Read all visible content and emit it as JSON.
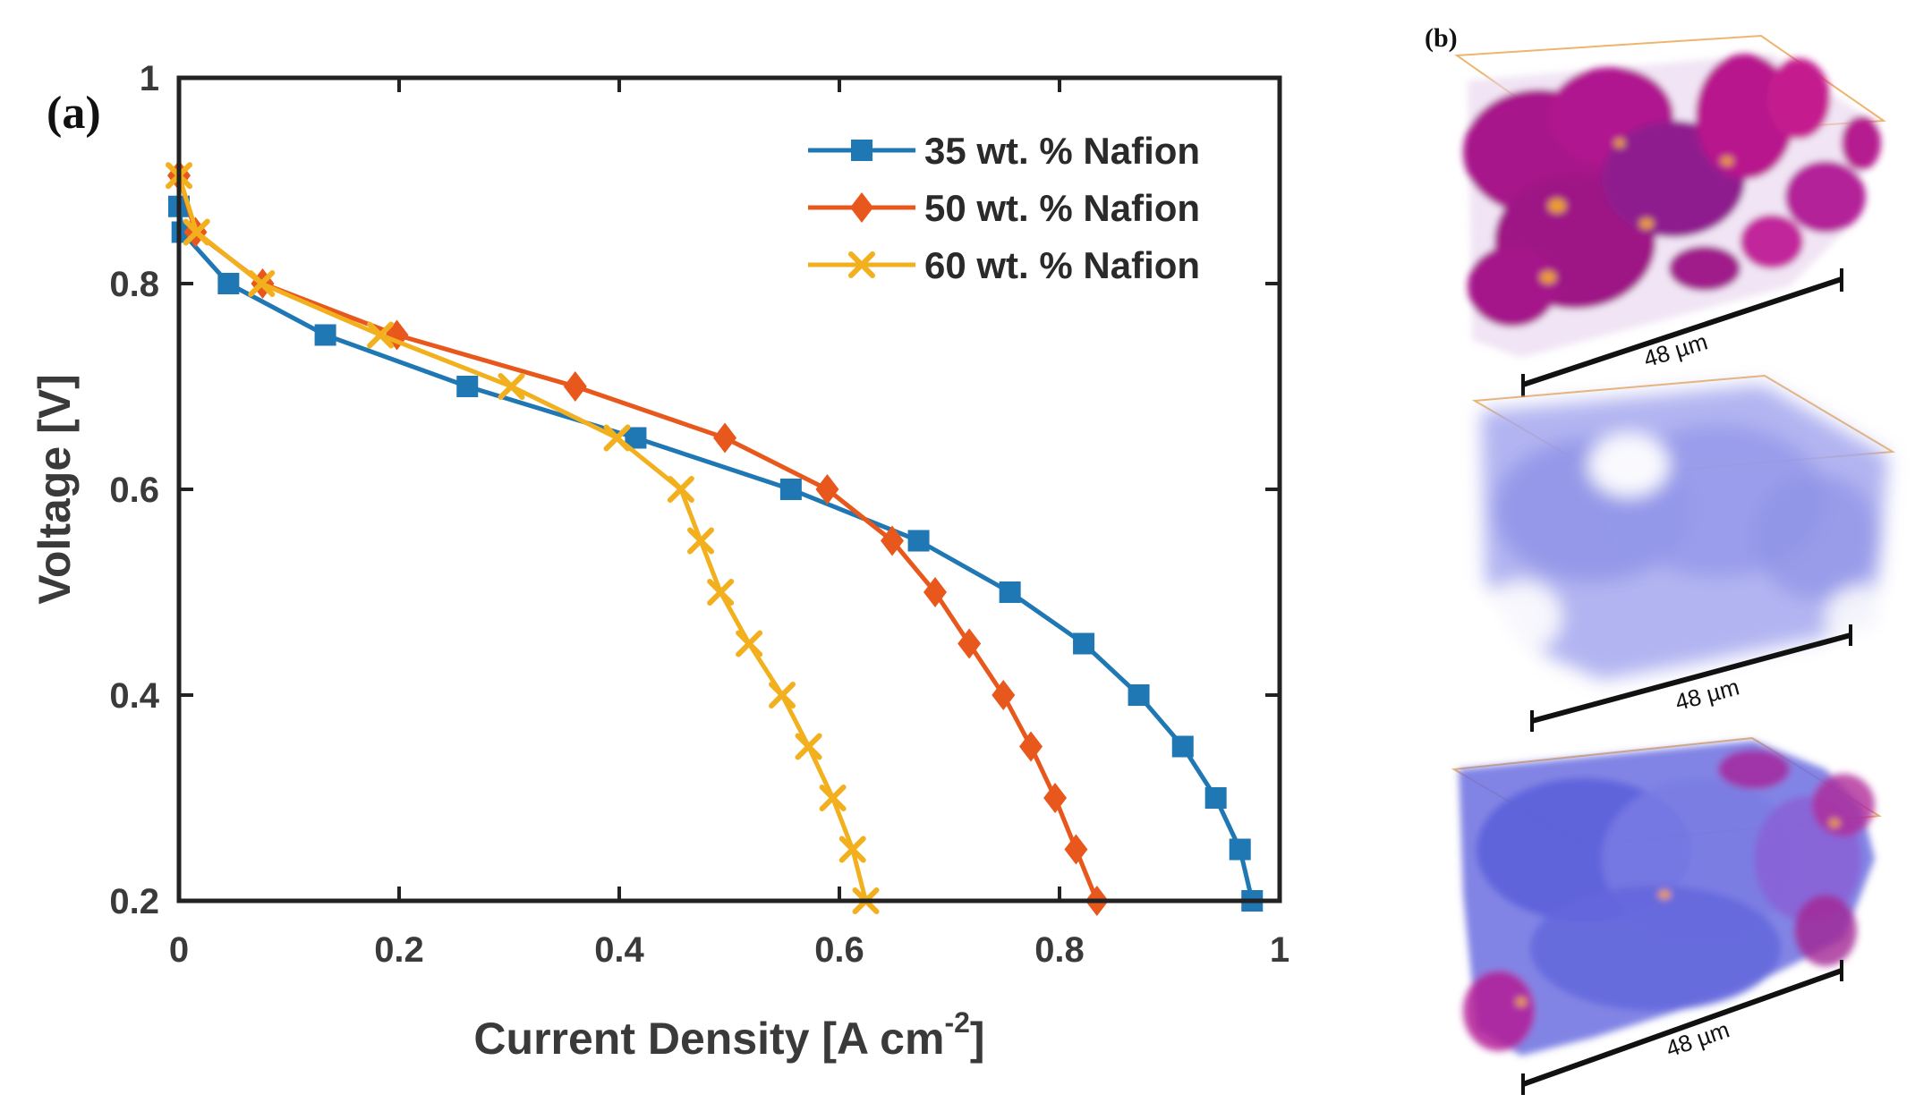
{
  "panel_a": {
    "label": "(a)",
    "chart_data": {
      "type": "line",
      "xlabel": "Current Density [A cm",
      "xlabel_sup": "-2",
      "xlabel_end": "]",
      "ylabel": "Voltage [V]",
      "xlim": [
        0,
        1
      ],
      "ylim": [
        0.2,
        1
      ],
      "xticks": [
        0,
        0.2,
        0.4,
        0.6,
        0.8,
        1
      ],
      "xtick_labels": [
        "0",
        "0.2",
        "0.4",
        "0.6",
        "0.8",
        "1"
      ],
      "yticks": [
        0.2,
        0.4,
        0.6,
        0.8,
        1
      ],
      "ytick_labels": [
        "0.2",
        "0.4",
        "0.6",
        "0.8",
        "1"
      ],
      "legend_position": "top-right",
      "grid": false,
      "series": [
        {
          "name": "35 wt. % Nafion",
          "color": "#1f77b4",
          "marker": "square",
          "points": [
            [
              0,
              0.875
            ],
            [
              0.003,
              0.85
            ],
            [
              0.045,
              0.8
            ],
            [
              0.133,
              0.75
            ],
            [
              0.262,
              0.7
            ],
            [
              0.415,
              0.65
            ],
            [
              0.556,
              0.6
            ],
            [
              0.672,
              0.55
            ],
            [
              0.755,
              0.5
            ],
            [
              0.822,
              0.45
            ],
            [
              0.872,
              0.4
            ],
            [
              0.912,
              0.35
            ],
            [
              0.942,
              0.3
            ],
            [
              0.964,
              0.25
            ],
            [
              0.975,
              0.2
            ]
          ]
        },
        {
          "name": "50 wt. % Nafion",
          "color": "#e8581c",
          "marker": "diamond",
          "points": [
            [
              0,
              0.905
            ],
            [
              0.015,
              0.85
            ],
            [
              0.076,
              0.8
            ],
            [
              0.198,
              0.75
            ],
            [
              0.36,
              0.7
            ],
            [
              0.496,
              0.65
            ],
            [
              0.589,
              0.6
            ],
            [
              0.648,
              0.55
            ],
            [
              0.687,
              0.5
            ],
            [
              0.718,
              0.45
            ],
            [
              0.749,
              0.4
            ],
            [
              0.774,
              0.35
            ],
            [
              0.796,
              0.3
            ],
            [
              0.815,
              0.25
            ],
            [
              0.834,
              0.2
            ]
          ]
        },
        {
          "name": "60 wt. % Nafion",
          "color": "#f2b01e",
          "marker": "x",
          "points": [
            [
              0,
              0.905
            ],
            [
              0.016,
              0.85
            ],
            [
              0.075,
              0.8
            ],
            [
              0.183,
              0.75
            ],
            [
              0.302,
              0.7
            ],
            [
              0.398,
              0.65
            ],
            [
              0.456,
              0.6
            ],
            [
              0.474,
              0.55
            ],
            [
              0.492,
              0.5
            ],
            [
              0.518,
              0.45
            ],
            [
              0.548,
              0.4
            ],
            [
              0.572,
              0.35
            ],
            [
              0.594,
              0.3
            ],
            [
              0.612,
              0.25
            ],
            [
              0.624,
              0.2
            ]
          ]
        }
      ]
    }
  },
  "panel_b": {
    "label": "(b)",
    "renders": [
      {
        "name": "35 wt. % Nafion render",
        "scale_label": "48 µm",
        "palette": "magenta-dense"
      },
      {
        "name": "50 wt. % Nafion render",
        "scale_label": "48 µm",
        "palette": "light-blue"
      },
      {
        "name": "60 wt. % Nafion render",
        "scale_label": "48 µm",
        "palette": "blue-purple"
      }
    ]
  }
}
